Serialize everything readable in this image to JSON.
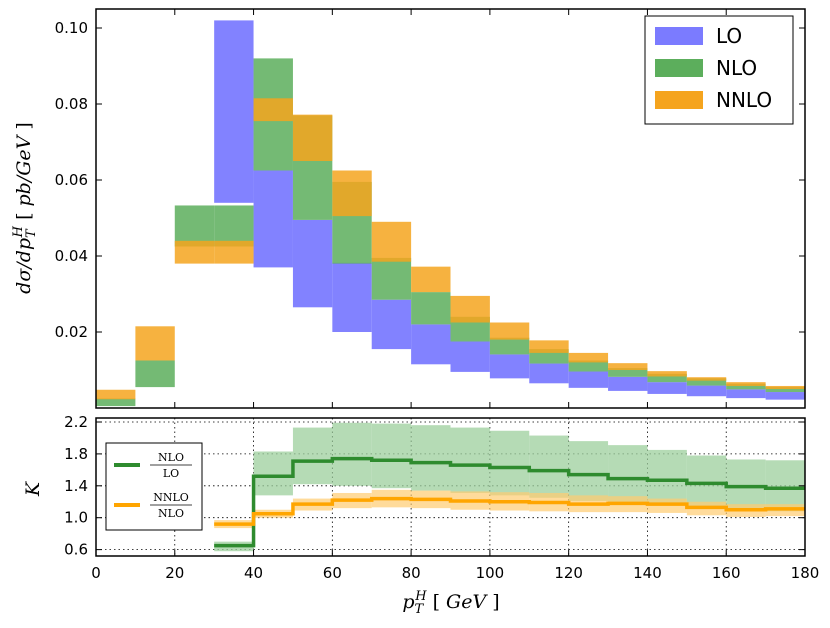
{
  "chart_data": [
    {
      "type": "bar",
      "panel": "top",
      "ylabel": "dσ/dp_T^H  [ pb/GeV ]",
      "xlim": [
        0,
        180
      ],
      "ylim": [
        0,
        0.105
      ],
      "yticks": [
        "0.02",
        "0.04",
        "0.06",
        "0.08",
        "0.10"
      ],
      "ytick_values": [
        0.02,
        0.04,
        0.06,
        0.08,
        0.1
      ],
      "bins": [
        [
          0,
          10
        ],
        [
          10,
          20
        ],
        [
          20,
          30
        ],
        [
          30,
          40
        ],
        [
          40,
          50
        ],
        [
          50,
          60
        ],
        [
          60,
          70
        ],
        [
          70,
          80
        ],
        [
          80,
          90
        ],
        [
          90,
          100
        ],
        [
          100,
          110
        ],
        [
          110,
          120
        ],
        [
          120,
          130
        ],
        [
          130,
          140
        ],
        [
          140,
          150
        ],
        [
          150,
          160
        ],
        [
          160,
          170
        ],
        [
          170,
          180
        ]
      ],
      "legend": [
        "LO",
        "NLO",
        "NNLO"
      ],
      "legend_position": "top-right",
      "colors": {
        "LO": "#7b7bff",
        "NLO": "#5cae5c",
        "NNLO": "#f5a41e"
      },
      "series": [
        {
          "name": "LO",
          "bands": [
            null,
            null,
            null,
            [
              0.054,
              0.102
            ],
            [
              0.037,
              0.0625
            ],
            [
              0.0265,
              0.0495
            ],
            [
              0.02,
              0.0382
            ],
            [
              0.0155,
              0.0285
            ],
            [
              0.0115,
              0.022
            ],
            [
              0.0095,
              0.0175
            ],
            [
              0.0078,
              0.0141
            ],
            [
              0.0065,
              0.0117
            ],
            [
              0.0053,
              0.0096
            ],
            [
              0.0045,
              0.0082
            ],
            [
              0.0037,
              0.0068
            ],
            [
              0.0031,
              0.0059
            ],
            [
              0.0026,
              0.0049
            ],
            [
              0.0022,
              0.0042
            ]
          ]
        },
        {
          "name": "NLO",
          "bands": [
            [
              0.0005,
              0.0025
            ],
            [
              0.0055,
              0.0125
            ],
            [
              0.0425,
              0.0533
            ],
            [
              0.0425,
              0.0533
            ],
            [
              0.0625,
              0.092
            ],
            [
              0.0495,
              0.077
            ],
            [
              0.038,
              0.0595
            ],
            [
              0.0285,
              0.0395
            ],
            [
              0.022,
              0.0305
            ],
            [
              0.0175,
              0.024
            ],
            [
              0.0141,
              0.0185
            ],
            [
              0.0117,
              0.0155
            ],
            [
              0.0096,
              0.0125
            ],
            [
              0.0082,
              0.0105
            ],
            [
              0.0068,
              0.009
            ],
            [
              0.0059,
              0.0078
            ],
            [
              0.0049,
              0.0064
            ],
            [
              0.0042,
              0.0055
            ]
          ]
        },
        {
          "name": "NNLO",
          "bands": [
            [
              0.0023,
              0.0048
            ],
            [
              0.0125,
              0.0215
            ],
            [
              0.038,
              0.044
            ],
            [
              0.038,
              0.044
            ],
            [
              0.0755,
              0.0815
            ],
            [
              0.065,
              0.0772
            ],
            [
              0.0505,
              0.0625
            ],
            [
              0.0385,
              0.049
            ],
            [
              0.0305,
              0.0372
            ],
            [
              0.0225,
              0.0295
            ],
            [
              0.018,
              0.0225
            ],
            [
              0.0145,
              0.0178
            ],
            [
              0.012,
              0.0145
            ],
            [
              0.01,
              0.0118
            ],
            [
              0.0083,
              0.0097
            ],
            [
              0.0072,
              0.0081
            ],
            [
              0.0058,
              0.0068
            ],
            [
              0.005,
              0.0058
            ]
          ]
        }
      ]
    },
    {
      "type": "line",
      "panel": "bottom",
      "ylabel": "K",
      "xlabel": "p_T^H  [ GeV ]",
      "xlim": [
        0,
        180
      ],
      "ylim": [
        0.52,
        2.25
      ],
      "xticks": [
        "0",
        "20",
        "40",
        "60",
        "80",
        "100",
        "120",
        "140",
        "160",
        "180"
      ],
      "xtick_values": [
        0,
        20,
        40,
        60,
        80,
        100,
        120,
        140,
        160,
        180
      ],
      "yticks": [
        "0.6",
        "1.0",
        "1.4",
        "1.8",
        "2.2"
      ],
      "ytick_values": [
        0.6,
        1.0,
        1.4,
        1.8,
        2.2
      ],
      "grid": true,
      "legend_position": "center-left",
      "colors": {
        "NLO/LO": "#2e8b2e",
        "NNLO/NLO": "#ffa500"
      },
      "bins": [
        [
          30,
          40
        ],
        [
          40,
          50
        ],
        [
          50,
          60
        ],
        [
          60,
          70
        ],
        [
          70,
          80
        ],
        [
          80,
          90
        ],
        [
          90,
          100
        ],
        [
          100,
          110
        ],
        [
          110,
          120
        ],
        [
          120,
          130
        ],
        [
          130,
          140
        ],
        [
          140,
          150
        ],
        [
          150,
          160
        ],
        [
          160,
          170
        ],
        [
          170,
          180
        ]
      ],
      "series": [
        {
          "name_num": "NLO",
          "name_den": "LO",
          "values": [
            0.65,
            1.52,
            1.71,
            1.74,
            1.72,
            1.69,
            1.66,
            1.63,
            1.59,
            1.54,
            1.49,
            1.47,
            1.43,
            1.39,
            1.37
          ],
          "band_low": [
            0.58,
            1.28,
            1.42,
            1.4,
            1.37,
            1.34,
            1.31,
            1.28,
            1.25,
            1.21,
            1.18,
            1.15,
            1.12,
            1.1,
            1.08
          ],
          "band_high": [
            0.7,
            1.83,
            2.13,
            2.19,
            2.18,
            2.16,
            2.13,
            2.09,
            2.03,
            1.96,
            1.91,
            1.85,
            1.78,
            1.73,
            1.72
          ]
        },
        {
          "name_num": "NNLO",
          "name_den": "NLO",
          "values": [
            0.92,
            1.05,
            1.17,
            1.22,
            1.24,
            1.23,
            1.21,
            1.2,
            1.19,
            1.17,
            1.18,
            1.17,
            1.13,
            1.1,
            1.11
          ],
          "band_low": [
            0.87,
            1.0,
            1.09,
            1.12,
            1.13,
            1.12,
            1.1,
            1.09,
            1.08,
            1.07,
            1.07,
            1.06,
            1.03,
            1.01,
            1.02
          ],
          "band_high": [
            0.97,
            1.1,
            1.24,
            1.31,
            1.35,
            1.34,
            1.33,
            1.32,
            1.31,
            1.28,
            1.27,
            1.24,
            1.2,
            1.17,
            1.17
          ]
        }
      ]
    }
  ]
}
